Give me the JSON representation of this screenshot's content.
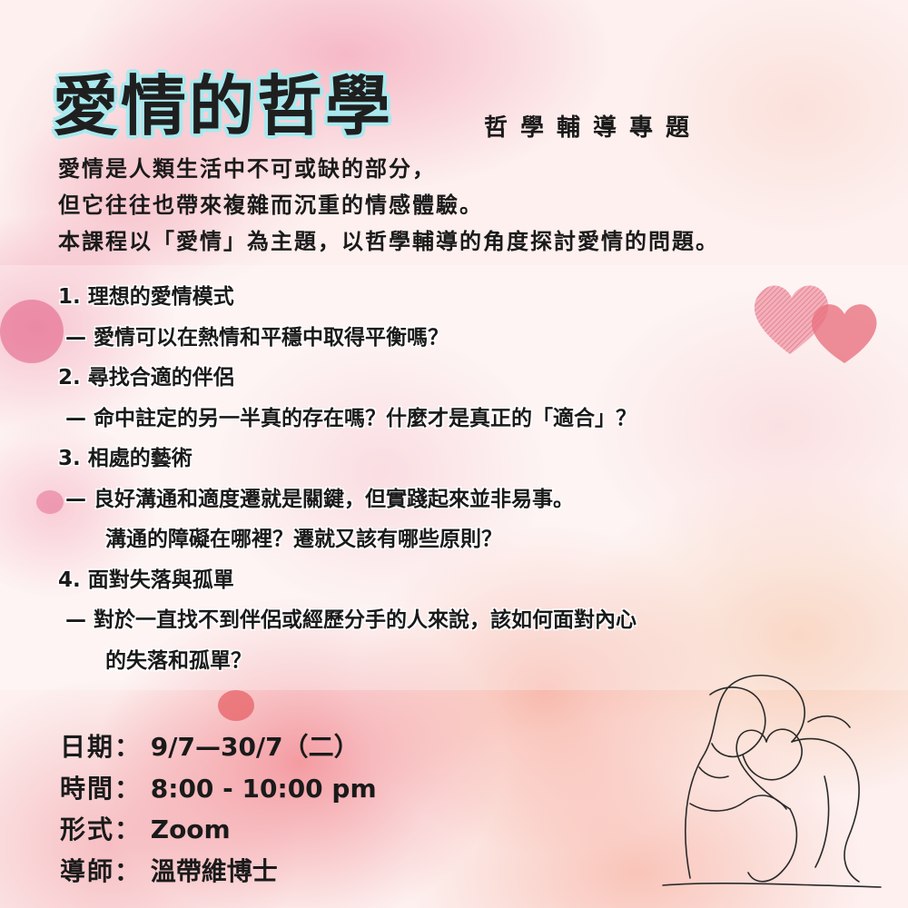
{
  "title": "愛情的哲學",
  "subtitle": "哲學輔導專題",
  "intro": [
    "愛情是人類生活中不可或缺的部分，",
    "但它往往也帶來複雜而沉重的情感體驗。",
    "本課程以「愛情」為主題，以哲學輔導的角度探討愛情的問題。"
  ],
  "topics": [
    {
      "heading": "1. 理想的愛情模式",
      "lines": [
        "— 愛情可以在熱情和平穩中取得平衡嗎？"
      ]
    },
    {
      "heading": "2. 尋找合適的伴侶",
      "lines": [
        "— 命中註定的另一半真的存在嗎？什麼才是真正的「適合」？"
      ]
    },
    {
      "heading": "3. 相處的藝術",
      "lines": [
        "— 良好溝通和適度遷就是關鍵，但實踐起來並非易事。",
        "溝通的障礙在哪裡？遷就又該有哪些原則？"
      ]
    },
    {
      "heading": "4. 面對失落與孤單",
      "lines": [
        "— 對於一直找不到伴侶或經歷分手的人來說，該如何面對內心",
        "的失落和孤單？"
      ]
    }
  ],
  "details": [
    {
      "label": "日期：",
      "value": "9/7—30/7（二）"
    },
    {
      "label": "時間：",
      "value": "8:00 - 10:00 pm"
    },
    {
      "label": "形式：",
      "value": "Zoom"
    },
    {
      "label": "導師：",
      "value": "溫帶維博士"
    }
  ],
  "decorations": [
    "hearts-icon",
    "embracing-couple-line-art"
  ],
  "colors": {
    "title_outline": "#a9e9ee",
    "heart_pink": "#e8737f",
    "text": "#1a1a1a"
  }
}
